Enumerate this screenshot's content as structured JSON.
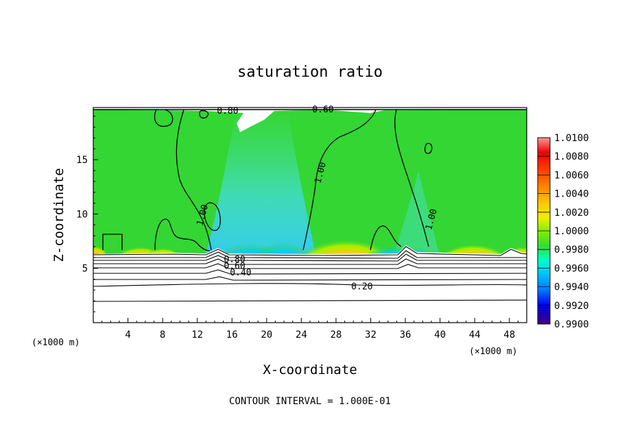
{
  "chart_data": {
    "type": "heatmap",
    "title": "saturation ratio",
    "xlabel": "X-coordinate",
    "ylabel": "Z-coordinate",
    "x_unit_label": "(×1000 m)",
    "xlim": [
      0,
      50
    ],
    "ylim": [
      0,
      19.8
    ],
    "x_ticks": [
      4,
      8,
      12,
      16,
      20,
      24,
      28,
      32,
      36,
      40,
      44,
      48
    ],
    "y_ticks": [
      5,
      10,
      15
    ],
    "note": "CONTOUR INTERVAL = 1.000E-01",
    "colorbar": {
      "labels": [
        "1.0100",
        "1.0080",
        "1.0060",
        "1.0040",
        "1.0020",
        "1.0000",
        "0.9980",
        "0.9960",
        "0.9940",
        "0.9920",
        "0.9900"
      ],
      "colors": [
        "#4b0082",
        "#2200aa",
        "#0000ee",
        "#0077ff",
        "#00bbff",
        "#00ffcc",
        "#33dd33",
        "#88ee00",
        "#eeee00",
        "#ffcc00",
        "#ff8800",
        "#ff4400",
        "#ee0000",
        "#ff9999"
      ]
    },
    "cloud_base_km": 6.5,
    "dry_region_color": "#ffffff",
    "background_color": "#33d633",
    "contour_labels": [
      {
        "text": "0.80",
        "x": 15.5,
        "z": 19.5
      },
      {
        "text": "0.60",
        "x": 26.5,
        "z": 19.6
      },
      {
        "text": "1.00",
        "x": 26.2,
        "z": 13.8
      },
      {
        "text": "1.00",
        "x": 12.6,
        "z": 9.9
      },
      {
        "text": "1.00",
        "x": 39.0,
        "z": 9.5
      },
      {
        "text": "0.80",
        "x": 16.3,
        "z": 5.8
      },
      {
        "text": "0.60",
        "x": 16.3,
        "z": 5.2
      },
      {
        "text": "0.40",
        "x": 17.0,
        "z": 4.6
      },
      {
        "text": "0.20",
        "x": 31.0,
        "z": 3.3
      }
    ]
  }
}
